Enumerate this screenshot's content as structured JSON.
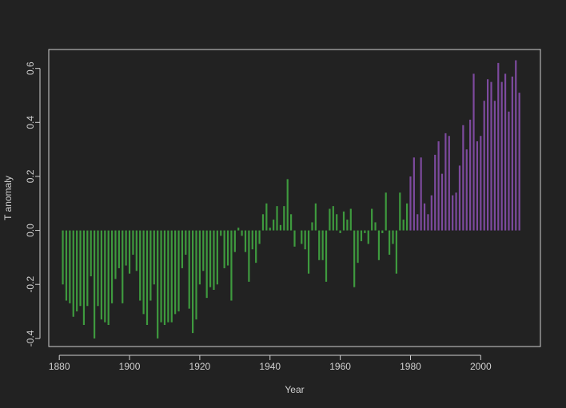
{
  "chart_data": {
    "type": "bar",
    "title": "",
    "xlabel": "Year",
    "ylabel": "T anomaly",
    "xlim": [
      1877,
      2017
    ],
    "ylim": [
      -0.43,
      0.67
    ],
    "x_ticks": [
      1880,
      1900,
      1920,
      1940,
      1960,
      1980,
      2000
    ],
    "x_tick_labels": [
      "1880",
      "1900",
      "1920",
      "1940",
      "1960",
      "1980",
      "2000"
    ],
    "y_ticks": [
      -0.4,
      -0.2,
      0.0,
      0.2,
      0.4,
      0.6
    ],
    "y_tick_labels": [
      "-0.4",
      "-0.2",
      "0.0",
      "0.2",
      "0.4",
      "0.6"
    ],
    "grid": false,
    "legend": "none",
    "colors": {
      "before_1980": "#3e9a3e",
      "from_1980": "#7d4a9e",
      "axis": "#d0d0d0",
      "background": "#222222"
    },
    "series": [
      {
        "x": [
          1881,
          1882,
          1883,
          1884,
          1885,
          1886,
          1887,
          1888,
          1889,
          1890,
          1891,
          1892,
          1893,
          1894,
          1895,
          1896,
          1897,
          1898,
          1899,
          1900,
          1901,
          1902,
          1903,
          1904,
          1905,
          1906,
          1907,
          1908,
          1909,
          1910,
          1911,
          1912,
          1913,
          1914,
          1915,
          1916,
          1917,
          1918,
          1919,
          1920,
          1921,
          1922,
          1923,
          1924,
          1925,
          1926,
          1927,
          1928,
          1929,
          1930,
          1931,
          1932,
          1933,
          1934,
          1935,
          1936,
          1937,
          1938,
          1939,
          1940,
          1941,
          1942,
          1943,
          1944,
          1945,
          1946,
          1947,
          1948,
          1949,
          1950,
          1951,
          1952,
          1953,
          1954,
          1955,
          1956,
          1957,
          1958,
          1959,
          1960,
          1961,
          1962,
          1963,
          1964,
          1965,
          1966,
          1967,
          1968,
          1969,
          1970,
          1971,
          1972,
          1973,
          1974,
          1975,
          1976,
          1977,
          1978,
          1979,
          1980,
          1981,
          1982,
          1983,
          1984,
          1985,
          1986,
          1987,
          1988,
          1989,
          1990,
          1991,
          1992,
          1993,
          1994,
          1995,
          1996,
          1997,
          1998,
          1999,
          2000,
          2001,
          2002,
          2003,
          2004,
          2005,
          2006,
          2007,
          2008,
          2009,
          2010,
          2011
        ],
        "values": [
          -0.2,
          -0.26,
          -0.27,
          -0.32,
          -0.3,
          -0.28,
          -0.35,
          -0.28,
          -0.17,
          -0.4,
          -0.28,
          -0.33,
          -0.34,
          -0.35,
          -0.27,
          -0.18,
          -0.14,
          -0.27,
          -0.13,
          -0.16,
          -0.09,
          -0.15,
          -0.26,
          -0.31,
          -0.35,
          -0.26,
          -0.2,
          -0.4,
          -0.34,
          -0.35,
          -0.34,
          -0.34,
          -0.31,
          -0.3,
          -0.14,
          -0.09,
          -0.29,
          -0.38,
          -0.33,
          -0.2,
          -0.15,
          -0.25,
          -0.21,
          -0.22,
          -0.2,
          -0.02,
          -0.14,
          -0.13,
          -0.26,
          -0.08,
          0.01,
          -0.02,
          -0.08,
          -0.19,
          -0.07,
          -0.12,
          -0.05,
          0.06,
          0.1,
          0.01,
          0.04,
          0.09,
          0.02,
          0.09,
          0.19,
          0.06,
          -0.06,
          0.0,
          -0.05,
          -0.07,
          -0.16,
          0.03,
          0.1,
          -0.11,
          -0.11,
          -0.19,
          0.08,
          0.09,
          0.06,
          -0.01,
          0.07,
          0.04,
          0.08,
          -0.21,
          -0.12,
          -0.04,
          -0.01,
          -0.05,
          0.08,
          0.03,
          -0.11,
          -0.01,
          0.14,
          -0.09,
          -0.05,
          -0.16,
          0.14,
          0.04,
          0.1,
          0.2,
          0.27,
          0.06,
          0.27,
          0.1,
          0.06,
          0.13,
          0.28,
          0.33,
          0.21,
          0.36,
          0.35,
          0.13,
          0.14,
          0.24,
          0.39,
          0.3,
          0.41,
          0.58,
          0.33,
          0.35,
          0.48,
          0.56,
          0.55,
          0.48,
          0.62,
          0.55,
          0.58,
          0.44,
          0.57,
          0.63,
          0.51
        ]
      }
    ]
  }
}
